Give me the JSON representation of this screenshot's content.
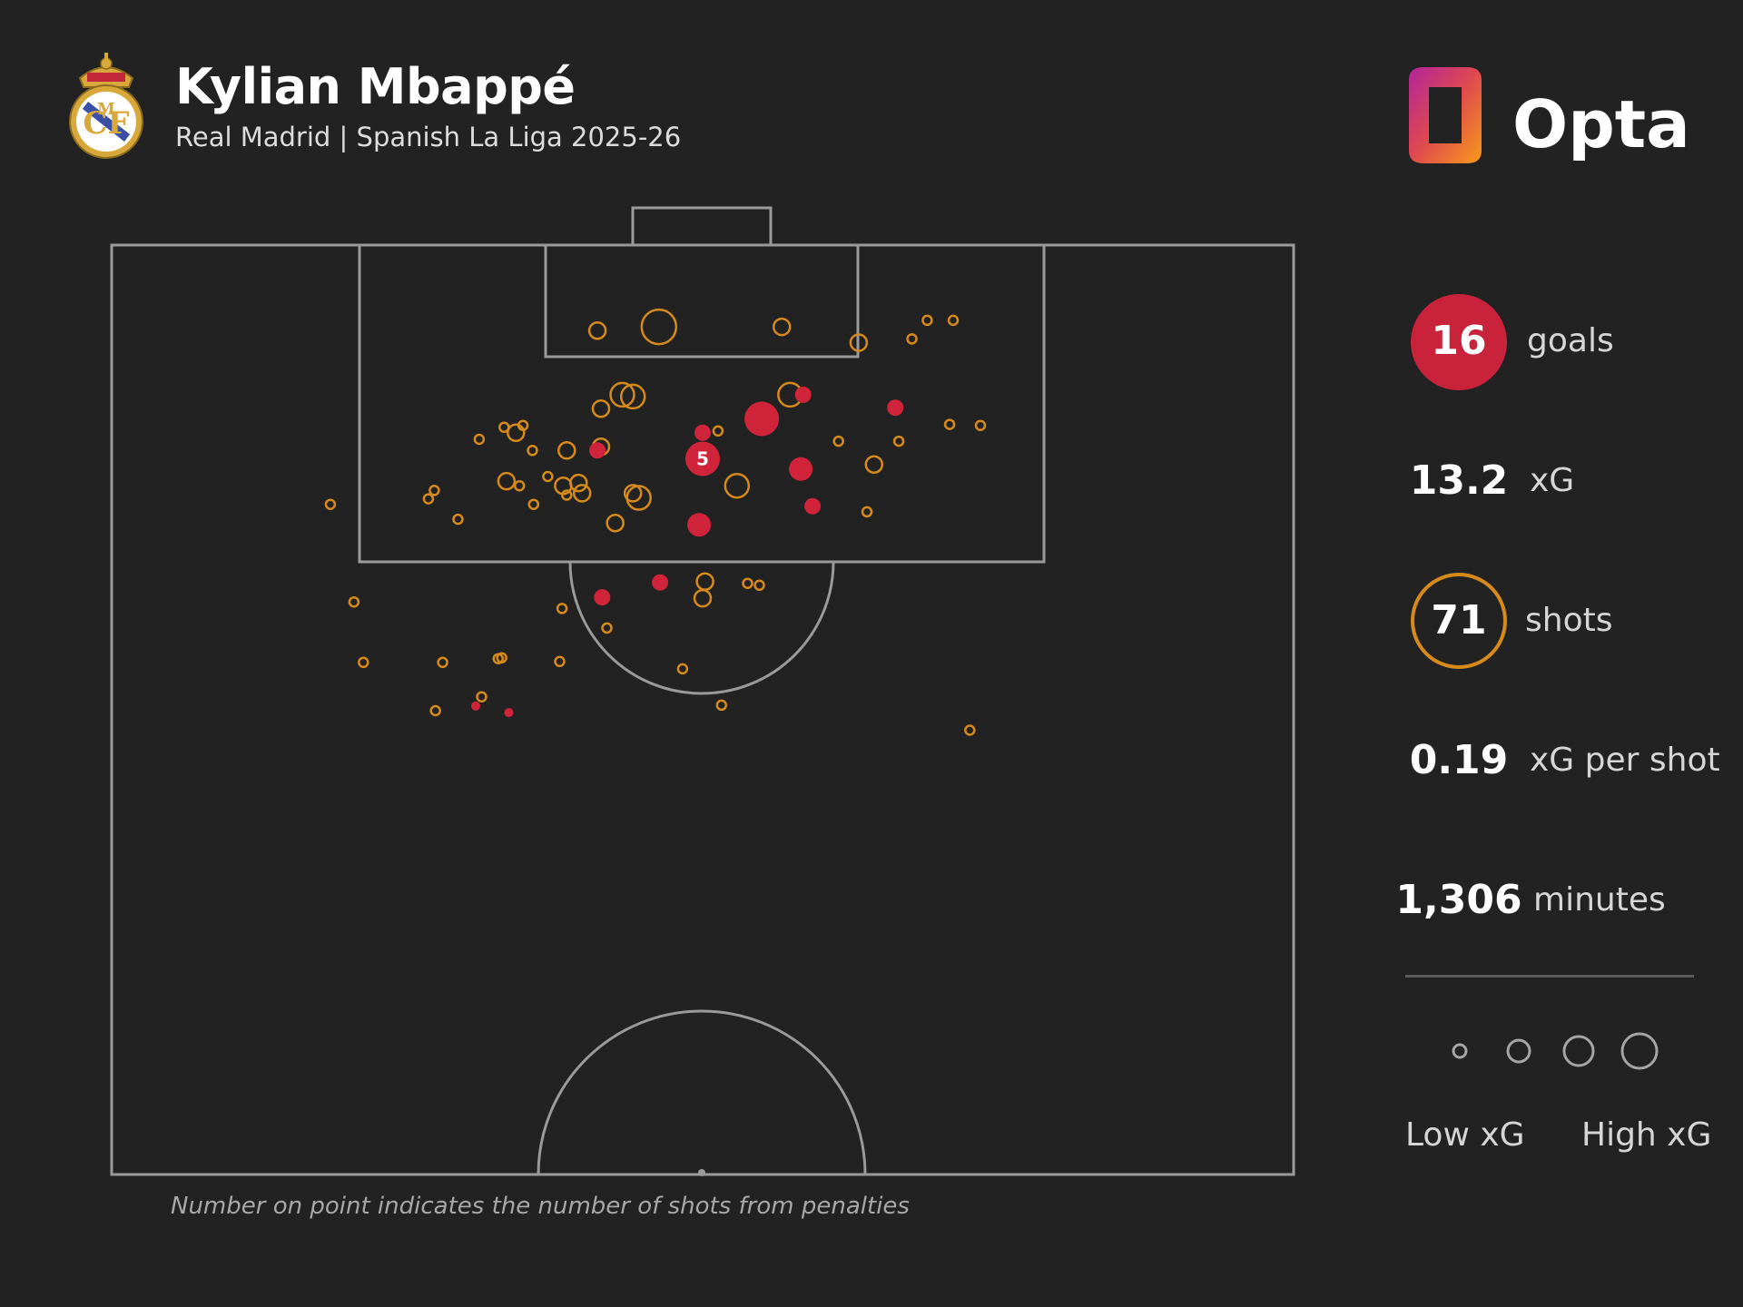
{
  "header": {
    "title": "Kylian Mbappé",
    "subtitle": "Real Madrid | Spanish La Liga 2025-26"
  },
  "brand": {
    "logo_text": "Opta"
  },
  "stats": {
    "goals": {
      "value": "16",
      "label": "goals"
    },
    "xg": {
      "value": "13.2",
      "label": "xG"
    },
    "shots": {
      "value": "71",
      "label": "shots"
    },
    "xg_per_shot": {
      "value": "0.19",
      "label": "xG per shot"
    },
    "minutes": {
      "value": "1,306",
      "label": "minutes"
    }
  },
  "legend": {
    "low": "Low xG",
    "high": "High xG"
  },
  "footnote": "Number on point indicates the number of shots from penalties",
  "colors": {
    "background": "#222222",
    "goal": "#d0243a",
    "shot": "#d68a1c",
    "lines": "#9a9a9a"
  },
  "chart_data": {
    "type": "scatter",
    "title": "Kylian Mbappé",
    "subtitle": "Real Madrid | Spanish La Liga 2025-26",
    "coordinate_system": "half pitch, attacking upward; x = width % (0 left, 100 right), y = distance from goal line in % of half-pitch length (0 goal line, 100 halfway line)",
    "series": [
      {
        "name": "goals",
        "points": [
          {
            "x": 50.0,
            "y": 23.0,
            "size": "large",
            "penalties": 5
          },
          {
            "x": 50.0,
            "y": 20.2,
            "size": "small"
          },
          {
            "x": 55.0,
            "y": 18.7,
            "size": "large"
          },
          {
            "x": 58.5,
            "y": 16.1,
            "size": "small"
          },
          {
            "x": 58.3,
            "y": 24.1,
            "size": "medium"
          },
          {
            "x": 59.3,
            "y": 28.1,
            "size": "small"
          },
          {
            "x": 66.3,
            "y": 17.5,
            "size": "small"
          },
          {
            "x": 41.1,
            "y": 22.1,
            "size": "small"
          },
          {
            "x": 49.7,
            "y": 30.1,
            "size": "medium"
          },
          {
            "x": 46.4,
            "y": 36.3,
            "size": "small"
          },
          {
            "x": 41.5,
            "y": 37.9,
            "size": "small"
          },
          {
            "x": 30.8,
            "y": 49.6,
            "size": "tiny"
          },
          {
            "x": 33.6,
            "y": 50.3,
            "size": "tiny"
          }
        ]
      },
      {
        "name": "shots",
        "points": [
          {
            "x": 41.1,
            "y": 9.2,
            "size": "small"
          },
          {
            "x": 46.3,
            "y": 8.8,
            "size": "large"
          },
          {
            "x": 56.7,
            "y": 8.8,
            "size": "small"
          },
          {
            "x": 63.2,
            "y": 10.5,
            "size": "small"
          },
          {
            "x": 67.7,
            "y": 10.1,
            "size": "tiny"
          },
          {
            "x": 69.0,
            "y": 8.1,
            "size": "tiny"
          },
          {
            "x": 43.2,
            "y": 16.1,
            "size": "medium"
          },
          {
            "x": 44.1,
            "y": 16.3,
            "size": "medium"
          },
          {
            "x": 41.4,
            "y": 17.6,
            "size": "small"
          },
          {
            "x": 57.4,
            "y": 16.1,
            "size": "medium"
          },
          {
            "x": 51.3,
            "y": 20.0,
            "size": "tiny"
          },
          {
            "x": 70.9,
            "y": 19.3,
            "size": "tiny"
          },
          {
            "x": 61.5,
            "y": 21.1,
            "size": "tiny"
          },
          {
            "x": 66.6,
            "y": 21.1,
            "size": "tiny"
          },
          {
            "x": 64.5,
            "y": 23.6,
            "size": "small"
          },
          {
            "x": 31.1,
            "y": 20.9,
            "size": "tiny"
          },
          {
            "x": 33.2,
            "y": 19.6,
            "size": "tiny"
          },
          {
            "x": 34.2,
            "y": 20.2,
            "size": "small"
          },
          {
            "x": 34.8,
            "y": 19.4,
            "size": "tiny"
          },
          {
            "x": 35.6,
            "y": 22.1,
            "size": "tiny"
          },
          {
            "x": 38.5,
            "y": 22.1,
            "size": "small"
          },
          {
            "x": 41.4,
            "y": 21.7,
            "size": "small"
          },
          {
            "x": 33.4,
            "y": 25.4,
            "size": "small"
          },
          {
            "x": 34.5,
            "y": 25.9,
            "size": "tiny"
          },
          {
            "x": 38.2,
            "y": 25.9,
            "size": "small"
          },
          {
            "x": 39.5,
            "y": 25.6,
            "size": "small"
          },
          {
            "x": 39.8,
            "y": 26.7,
            "size": "small"
          },
          {
            "x": 44.6,
            "y": 27.2,
            "size": "medium"
          },
          {
            "x": 44.1,
            "y": 26.7,
            "size": "small"
          },
          {
            "x": 52.9,
            "y": 25.9,
            "size": "medium"
          },
          {
            "x": 27.3,
            "y": 26.4,
            "size": "tiny"
          },
          {
            "x": 26.8,
            "y": 27.3,
            "size": "tiny"
          },
          {
            "x": 18.5,
            "y": 27.9,
            "size": "tiny"
          },
          {
            "x": 29.3,
            "y": 29.5,
            "size": "tiny"
          },
          {
            "x": 35.7,
            "y": 27.9,
            "size": "tiny"
          },
          {
            "x": 42.6,
            "y": 29.9,
            "size": "small"
          },
          {
            "x": 63.9,
            "y": 28.7,
            "size": "tiny"
          },
          {
            "x": 50.2,
            "y": 36.2,
            "size": "small"
          },
          {
            "x": 50.0,
            "y": 38.0,
            "size": "small"
          },
          {
            "x": 53.8,
            "y": 36.4,
            "size": "tiny"
          },
          {
            "x": 54.8,
            "y": 36.6,
            "size": "tiny"
          },
          {
            "x": 38.1,
            "y": 39.1,
            "size": "tiny"
          },
          {
            "x": 41.9,
            "y": 41.2,
            "size": "tiny"
          },
          {
            "x": 20.5,
            "y": 38.4,
            "size": "tiny"
          },
          {
            "x": 21.3,
            "y": 44.9,
            "size": "tiny"
          },
          {
            "x": 28.0,
            "y": 44.9,
            "size": "tiny"
          },
          {
            "x": 32.7,
            "y": 44.5,
            "size": "tiny"
          },
          {
            "x": 33.0,
            "y": 44.4,
            "size": "tiny"
          },
          {
            "x": 37.9,
            "y": 44.8,
            "size": "tiny"
          },
          {
            "x": 48.3,
            "y": 45.6,
            "size": "tiny"
          },
          {
            "x": 31.3,
            "y": 48.6,
            "size": "tiny"
          },
          {
            "x": 27.4,
            "y": 50.1,
            "size": "tiny"
          },
          {
            "x": 51.6,
            "y": 49.5,
            "size": "tiny"
          },
          {
            "x": 72.6,
            "y": 52.2,
            "size": "tiny"
          },
          {
            "x": 71.2,
            "y": 8.1,
            "size": "tiny"
          },
          {
            "x": 73.5,
            "y": 19.4,
            "size": "tiny"
          },
          {
            "x": 38.5,
            "y": 26.9,
            "size": "tiny"
          },
          {
            "x": 36.9,
            "y": 24.9,
            "size": "tiny"
          }
        ]
      }
    ],
    "size_scale": [
      "tiny",
      "small",
      "medium",
      "large"
    ],
    "legend": [
      "Low xG",
      "High xG"
    ]
  }
}
